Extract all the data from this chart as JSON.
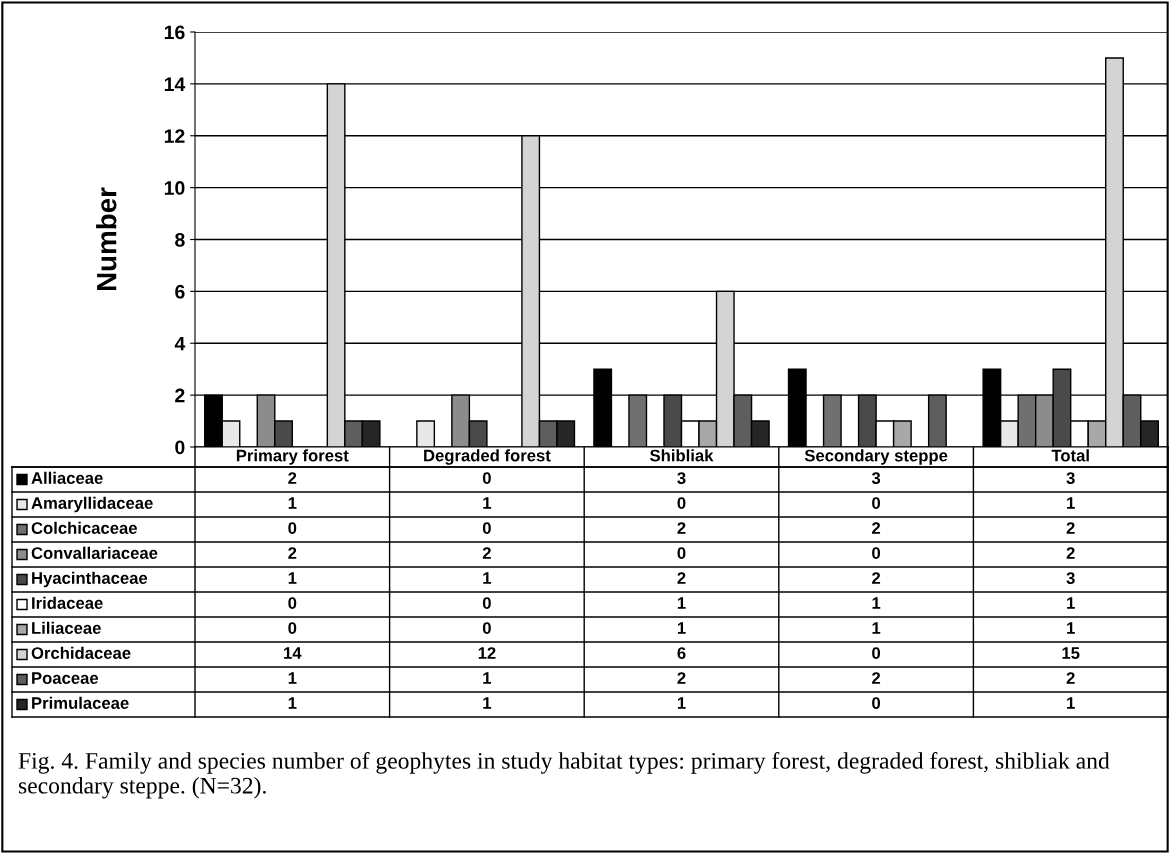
{
  "chart_data": {
    "type": "bar",
    "ylabel": "Number",
    "categories": [
      "Primary forest",
      "Degraded forest",
      "Shibliak",
      "Secondary steppe",
      "Total"
    ],
    "series": [
      {
        "name": "Alliaceae",
        "color": "#000000",
        "values": [
          2,
          0,
          3,
          3,
          3
        ]
      },
      {
        "name": "Amaryllidaceae",
        "color": "#e8e8e8",
        "values": [
          1,
          1,
          0,
          0,
          1
        ]
      },
      {
        "name": "Colchicaceae",
        "color": "#707070",
        "values": [
          0,
          0,
          2,
          2,
          2
        ]
      },
      {
        "name": "Convallariaceae",
        "color": "#8c8c8c",
        "values": [
          2,
          2,
          0,
          0,
          2
        ]
      },
      {
        "name": "Hyacinthaceae",
        "color": "#4a4a4a",
        "values": [
          1,
          1,
          2,
          2,
          3
        ]
      },
      {
        "name": "Iridaceae",
        "color": "#ffffff",
        "values": [
          0,
          0,
          1,
          1,
          1
        ]
      },
      {
        "name": "Liliaceae",
        "color": "#a8a8a8",
        "values": [
          0,
          0,
          1,
          1,
          1
        ]
      },
      {
        "name": "Orchidaceae",
        "color": "#d4d4d4",
        "values": [
          14,
          12,
          6,
          0,
          15
        ]
      },
      {
        "name": "Poaceae",
        "color": "#5e5e5e",
        "values": [
          1,
          1,
          2,
          2,
          2
        ]
      },
      {
        "name": "Primulaceae",
        "color": "#262626",
        "values": [
          1,
          1,
          1,
          0,
          1
        ]
      }
    ],
    "ylim": [
      0,
      16
    ],
    "yticks": [
      0,
      2,
      4,
      6,
      8,
      10,
      12,
      14,
      16
    ],
    "grid": "y",
    "legend": "left",
    "data_labels": true,
    "annotations": [
      "Fig. 4. Family and species number of geophytes in study habitat types: primary forest, degraded forest, shibliak and secondary steppe. (N=32)."
    ]
  }
}
